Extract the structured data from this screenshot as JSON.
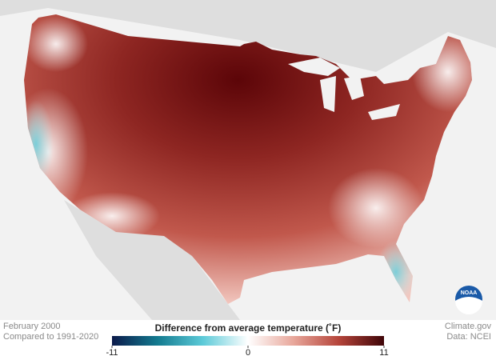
{
  "footer": {
    "left": [
      "February 2000",
      "Compared to 1991-2020"
    ],
    "right": [
      "Climate.gov",
      "Data: NCEI"
    ]
  },
  "legend": {
    "title": "Difference from average temperature (˚F)",
    "colors": [
      "#0b1a4a",
      "#137a8f",
      "#5ccad8",
      "#ffffff",
      "#e8a79b",
      "#b5443a",
      "#3f0508"
    ],
    "lim": [
      -11,
      11
    ],
    "ticks": [
      -11,
      0,
      11
    ]
  },
  "logo": "NOAA"
}
